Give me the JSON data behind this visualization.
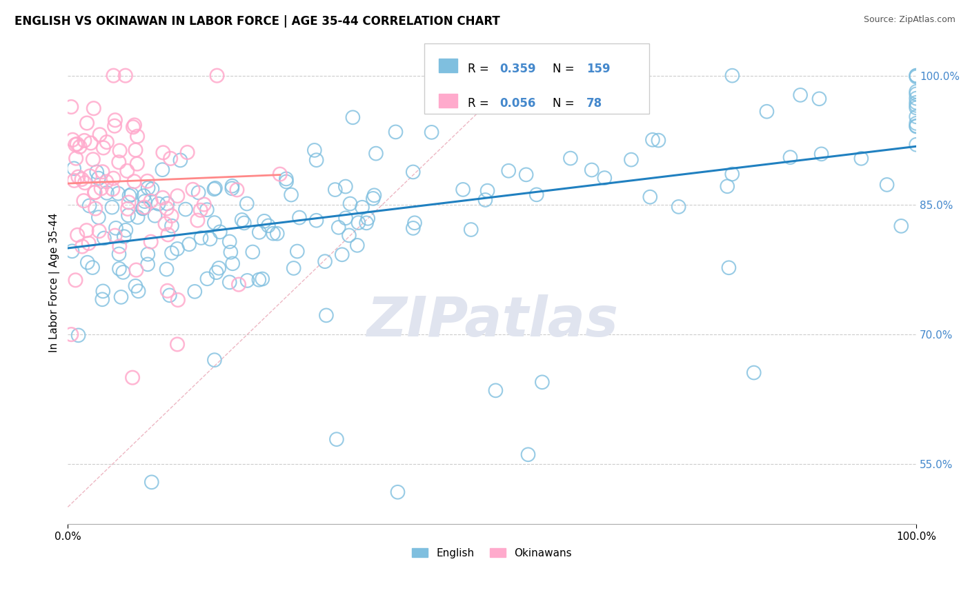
{
  "title": "ENGLISH VS OKINAWAN IN LABOR FORCE | AGE 35-44 CORRELATION CHART",
  "source": "Source: ZipAtlas.com",
  "ylabel": "In Labor Force | Age 35-44",
  "legend_english": "English",
  "legend_okinawan": "Okinawans",
  "R_english": 0.359,
  "N_english": 159,
  "R_okinawan": 0.056,
  "N_okinawan": 78,
  "xlim": [
    0.0,
    1.0
  ],
  "ylim": [
    0.48,
    1.04
  ],
  "ytick_vals": [
    0.55,
    0.7,
    0.85,
    1.0
  ],
  "ytick_labels": [
    "55.0%",
    "70.0%",
    "85.0%",
    "100.0%"
  ],
  "background_color": "#ffffff",
  "blue_scatter_color": "#7fbfdf",
  "pink_scatter_color": "#ffaacc",
  "trend_blue": "#2080c0",
  "trend_pink": "#ff8888",
  "diag_color": "#ddbbbb",
  "grid_color": "#cccccc",
  "ytick_color": "#4488cc",
  "watermark_color": "#e0e4ef",
  "seed_eng": 2024,
  "seed_oki": 999
}
